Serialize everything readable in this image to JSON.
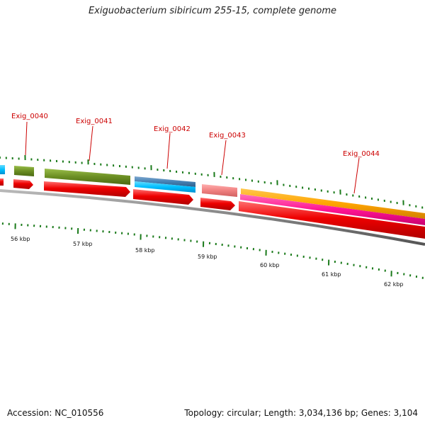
{
  "title": "Exiguobacterium sibiricum 255-15, complete genome",
  "genes": [
    {
      "label": "Exig_0040"
    },
    {
      "label": "Exig_0041"
    },
    {
      "label": "Exig_0042"
    },
    {
      "label": "Exig_0043"
    },
    {
      "label": "Exig_0044"
    }
  ],
  "scale_labels": [
    "56 kbp",
    "57 kbp",
    "58 kbp",
    "59 kbp",
    "60 kbp",
    "61 kbp",
    "62 kbp"
  ],
  "footer": {
    "accession": "Accession: NC_010556",
    "summary": "Topology: circular; Length: 3,034,136 bp; Genes: 3,104"
  },
  "colors": {
    "gene_label": "#cc0000",
    "cds": "#ee0000",
    "olive": "#6b8e23",
    "cyan": "#00bfff",
    "steelblue": "#4682b4",
    "salmon": "#f08080",
    "orange": "#ffa500",
    "magenta": "#ff1493",
    "backbone": "#808080",
    "tick": "#1a7a1a"
  }
}
